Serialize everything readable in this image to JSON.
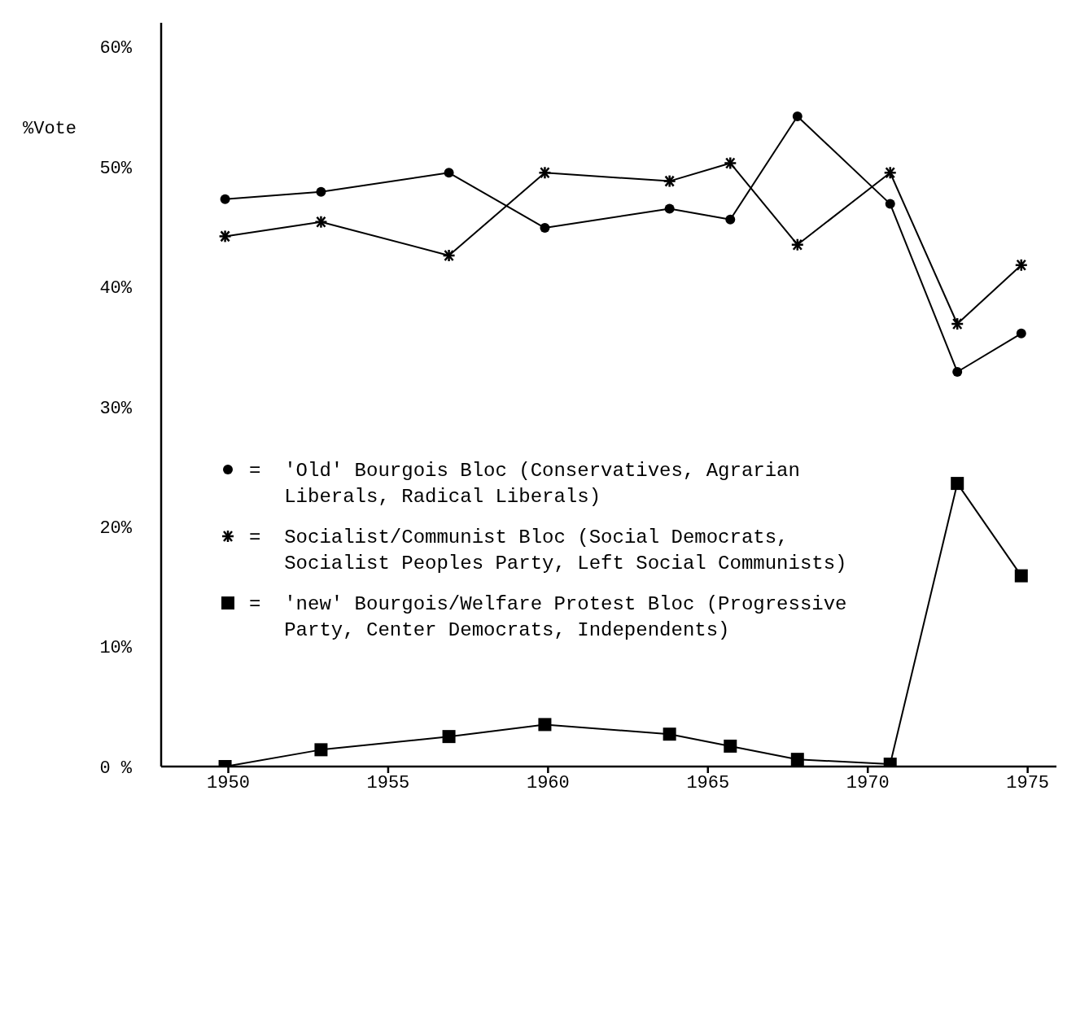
{
  "chart_data": {
    "type": "line",
    "ylabel": "%Vote",
    "x": [
      1949.9,
      1952.9,
      1956.9,
      1959.9,
      1963.8,
      1965.7,
      1967.8,
      1970.7,
      1972.8,
      1974.8
    ],
    "xlim": [
      1947.9,
      1975.9
    ],
    "xticks": [
      1950,
      1955,
      1960,
      1965,
      1970,
      1975
    ],
    "ylim": [
      0,
      62
    ],
    "yticks": [
      {
        "value": 0,
        "label": "0 %"
      },
      {
        "value": 10,
        "label": "10%"
      },
      {
        "value": 20,
        "label": "20%"
      },
      {
        "value": 30,
        "label": "30%"
      },
      {
        "value": 40,
        "label": "40%"
      },
      {
        "value": 50,
        "label": "50%"
      },
      {
        "value": 60,
        "label": "60%"
      }
    ],
    "grid": false,
    "legend": "left",
    "line_style": "solid",
    "series": [
      {
        "name": "= 'Old' Bourgois Bloc (Conservatives, Agrarian Liberals, Radical Liberals)",
        "color": "#000000",
        "marker": "circle",
        "values": [
          47.3,
          47.9,
          49.5,
          44.9,
          46.5,
          45.6,
          54.2,
          46.9,
          32.9,
          36.1
        ]
      },
      {
        "name": "= Socialist/Communist Bloc (Social Democrats, Socialist Peoples Party, Left Social Communists)",
        "color": "#000000",
        "marker": "cross",
        "values": [
          44.2,
          45.4,
          42.6,
          49.5,
          48.8,
          50.3,
          43.5,
          49.5,
          36.9,
          41.8
        ]
      },
      {
        "name": "= 'new' Bourgois/Welfare Protest Bloc (Progressive Party, Center Democrats, Independents)",
        "color": "#000000",
        "marker": "square",
        "values": [
          0,
          1.4,
          2.5,
          3.5,
          2.7,
          1.7,
          0.6,
          0.2,
          23.6,
          15.9
        ]
      }
    ]
  }
}
